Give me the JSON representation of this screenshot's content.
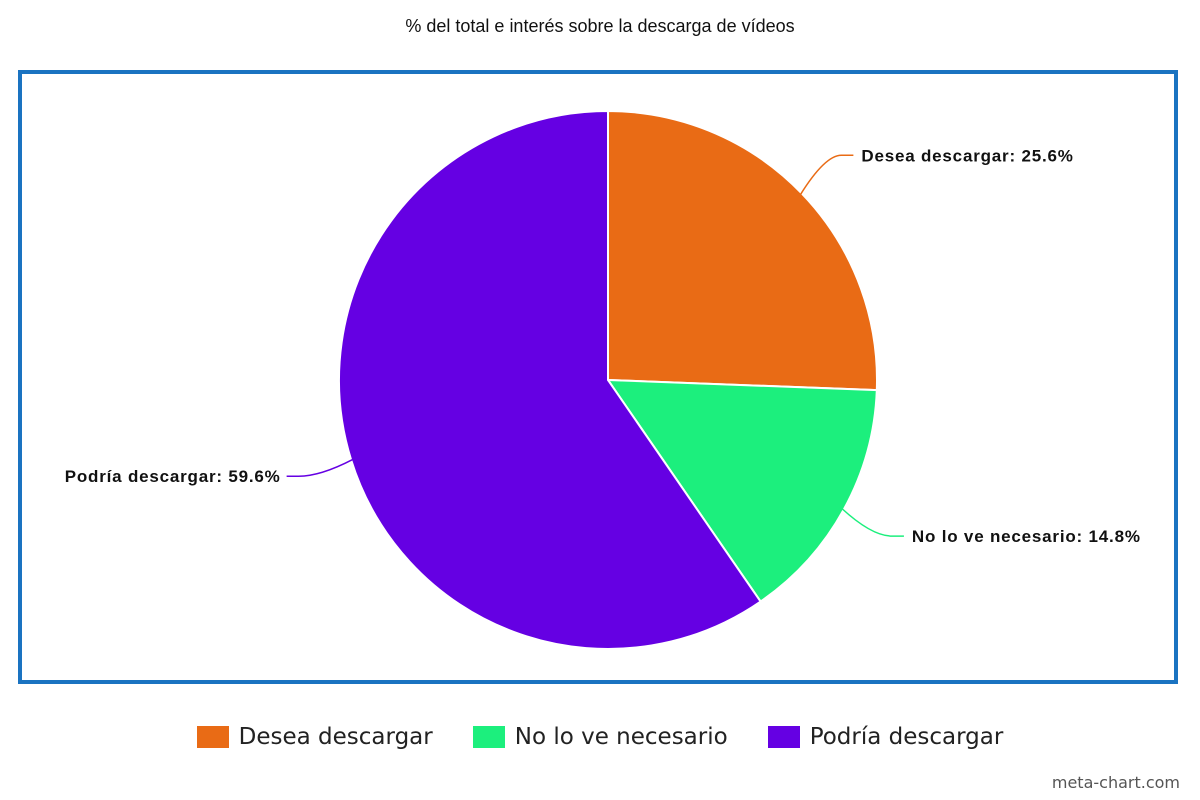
{
  "chart_data": {
    "type": "pie",
    "title": "% del total e interés sobre la descarga de vídeos",
    "slices": [
      {
        "label": "Desea descargar",
        "value": 25.6,
        "color": "#e96b15",
        "data_label": "Desea descargar: 25.6%"
      },
      {
        "label": "No lo ve necesario",
        "value": 14.8,
        "color": "#1cef7d",
        "data_label": "No lo ve necesario: 14.8%"
      },
      {
        "label": "Podría descargar",
        "value": 59.6,
        "color": "#6500e3",
        "data_label": "Podría descargar: 59.6%"
      }
    ],
    "legend_position": "bottom"
  },
  "watermark": "meta-chart.com",
  "colors": {
    "frame": "#1a73c1"
  }
}
